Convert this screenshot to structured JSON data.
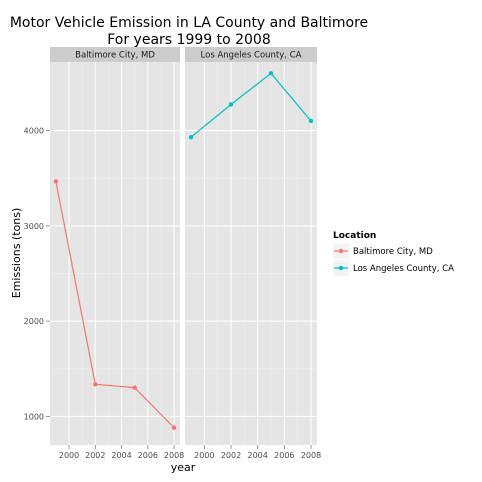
{
  "chart_data": {
    "type": "line",
    "title": "Motor Vehicle Emission in LA County and Baltimore",
    "subtitle": "For years 1999 to 2008",
    "xlabel": "year",
    "ylabel": "Emissions (tons)",
    "xlim": [
      1998.55,
      2008.45
    ],
    "ylim": [
      700,
      4720
    ],
    "xticks": [
      2000,
      2002,
      2004,
      2006,
      2008
    ],
    "yticks": [
      1000,
      2000,
      3000,
      4000
    ],
    "grid": true,
    "legend": {
      "title": "Location",
      "position": "right"
    },
    "panels": [
      {
        "label": "Baltimore City, MD",
        "series": [
          {
            "name": "Baltimore City, MD",
            "color": "#F8766D",
            "x": [
              1999,
              2002,
              2005,
              2008
            ],
            "y": [
              3466,
              1337,
              1302,
              881
            ]
          }
        ]
      },
      {
        "label": "Los Angeles County, CA",
        "series": [
          {
            "name": "Los Angeles County, CA",
            "color": "#00BFC4",
            "x": [
              1999,
              2002,
              2005,
              2008
            ],
            "y": [
              3931,
              4274,
              4601,
              4101
            ]
          }
        ]
      }
    ]
  }
}
